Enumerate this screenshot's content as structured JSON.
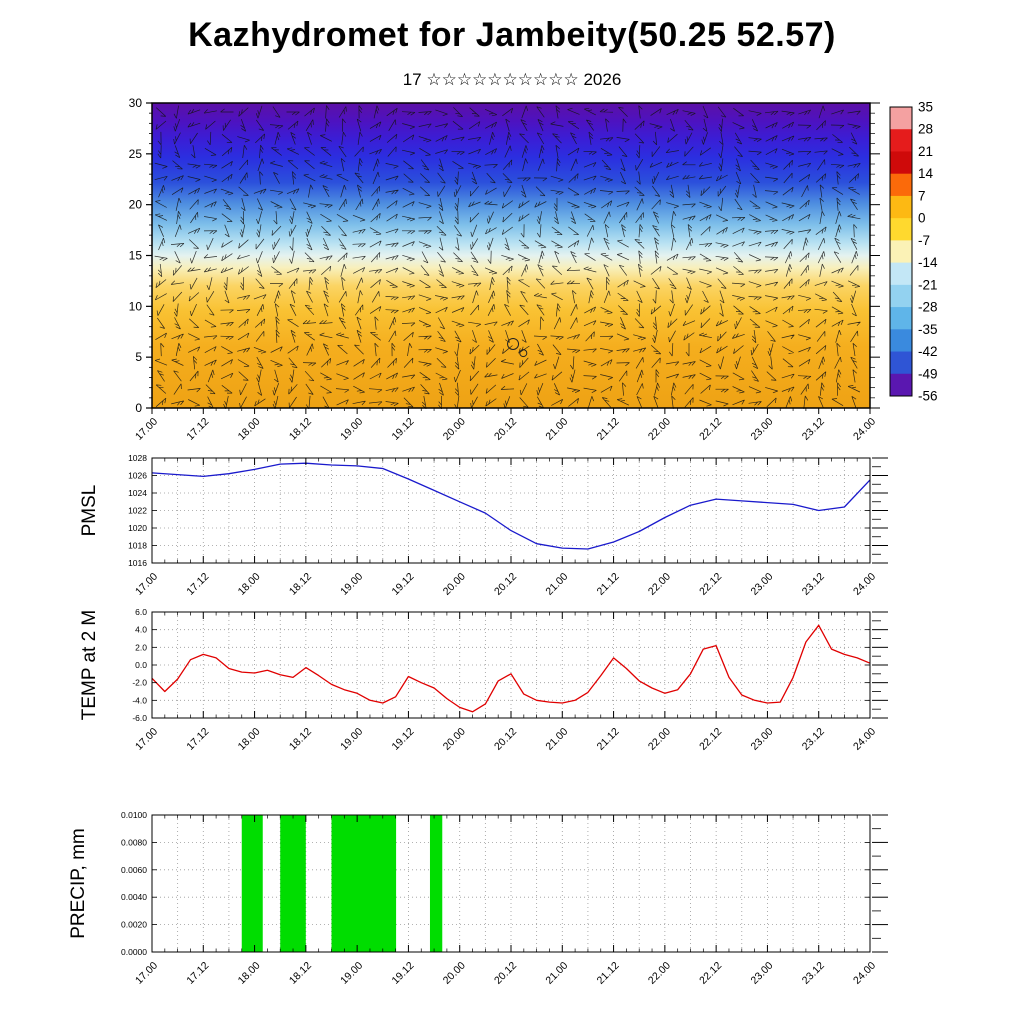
{
  "title": "Kazhydromet for Jambeity(50.25 52.57)",
  "subtitle": "17 ☆☆☆☆☆☆☆☆☆☆ 2026",
  "time_axis": {
    "tick_labels": [
      "17.00",
      "17.12",
      "18.00",
      "18.12",
      "19.00",
      "19.12",
      "20.00",
      "20.12",
      "21.00",
      "21.12",
      "22.00",
      "22.12",
      "23.00",
      "23.12",
      "24.00"
    ],
    "major_values": [
      17,
      17.5,
      18,
      18.5,
      19,
      19.5,
      20,
      20.5,
      21,
      21.5,
      22,
      22.5,
      23,
      23.5,
      24
    ],
    "minor_step_days": 0.125,
    "range_days": [
      17,
      24
    ]
  },
  "chart_data": [
    {
      "type": "heatmap",
      "panel_name": "temperature-height-cross-section",
      "description": "time-height temperature cross-section with wind barbs",
      "ylim": [
        0,
        30
      ],
      "ytick_values": [
        0,
        5,
        10,
        15,
        20,
        25,
        30
      ],
      "ytick_labels": [
        "0",
        "5",
        "10",
        "15",
        "20",
        "25",
        "30"
      ],
      "gradient_stops": [
        {
          "offset": 0,
          "color": "#5c10a6"
        },
        {
          "offset": 6,
          "color": "#4d12c0"
        },
        {
          "offset": 12,
          "color": "#3a1ed6"
        },
        {
          "offset": 18,
          "color": "#2b2fe0"
        },
        {
          "offset": 26,
          "color": "#2b50dc"
        },
        {
          "offset": 33,
          "color": "#4e8ee0"
        },
        {
          "offset": 40,
          "color": "#7fc0ea"
        },
        {
          "offset": 46,
          "color": "#b9e2f2"
        },
        {
          "offset": 50,
          "color": "#e4f2f0"
        },
        {
          "offset": 54,
          "color": "#f8f0bc"
        },
        {
          "offset": 60,
          "color": "#fbd463"
        },
        {
          "offset": 68,
          "color": "#f9c233"
        },
        {
          "offset": 80,
          "color": "#f5ae1e"
        },
        {
          "offset": 100,
          "color": "#eea214"
        }
      ],
      "markers": [
        {
          "t": 20.52,
          "h": 6.3,
          "r": 5.5
        },
        {
          "t": 20.62,
          "h": 5.4,
          "r": 3.5
        }
      ],
      "colorbar": {
        "labels": [
          "35",
          "28",
          "21",
          "14",
          "7",
          "0",
          "-7",
          "-14",
          "-21",
          "-28",
          "-35",
          "-42",
          "-49",
          "-56"
        ],
        "segment_colors": [
          "#f4a1a1",
          "#e51c1c",
          "#cf0a0a",
          "#fb6a0a",
          "#fdb913",
          "#ffd92e",
          "#fbf2b6",
          "#c3e7f6",
          "#93d2f0",
          "#5fb5e9",
          "#3a8ade",
          "#2f55d5",
          "#5a17b0"
        ]
      }
    },
    {
      "type": "line",
      "panel_name": "pmsl-panel",
      "line_name": "pmsl-line",
      "ylabel": "PMSL",
      "color": "#1a1acc",
      "ylim": [
        1016,
        1028
      ],
      "ytick_values": [
        1016,
        1018,
        1020,
        1022,
        1024,
        1026,
        1028
      ],
      "ytick_labels": [
        "1016",
        "1018",
        "1020",
        "1022",
        "1024",
        "1026",
        "1028"
      ],
      "x_start": 17,
      "x_step": 0.25,
      "values": [
        1026.3,
        1026.1,
        1025.9,
        1026.2,
        1026.7,
        1027.3,
        1027.4,
        1027.2,
        1027.1,
        1026.8,
        1025.6,
        1024.3,
        1023.0,
        1021.7,
        1019.7,
        1018.2,
        1017.7,
        1017.6,
        1018.4,
        1019.6,
        1021.2,
        1022.6,
        1023.3,
        1023.1,
        1022.9,
        1022.7,
        1022.0,
        1022.4,
        1025.5
      ]
    },
    {
      "type": "line",
      "panel_name": "temp-panel",
      "line_name": "temp-line",
      "ylabel": "TEMP at 2 M",
      "color": "#e00000",
      "ylim": [
        -6,
        6
      ],
      "ytick_values": [
        -6,
        -4,
        -2,
        0,
        2,
        4,
        6
      ],
      "ytick_labels": [
        "-6.0",
        "-4.0",
        "-2.0",
        "0.0",
        "2.0",
        "4.0",
        "6.0"
      ],
      "x_start": 17,
      "x_step": 0.125,
      "values": [
        -1.5,
        -3.0,
        -1.6,
        0.6,
        1.2,
        0.8,
        -0.4,
        -0.8,
        -0.9,
        -0.6,
        -1.1,
        -1.4,
        -0.3,
        -1.2,
        -2.2,
        -2.8,
        -3.2,
        -4.0,
        -4.3,
        -3.6,
        -1.3,
        -2.0,
        -2.6,
        -3.8,
        -4.8,
        -5.3,
        -4.4,
        -1.8,
        -1.0,
        -3.3,
        -4.0,
        -4.2,
        -4.3,
        -4.0,
        -3.1,
        -1.2,
        0.8,
        -0.4,
        -1.8,
        -2.6,
        -3.2,
        -2.8,
        -1.0,
        1.8,
        2.2,
        -1.4,
        -3.4,
        -4.0,
        -4.3,
        -4.2,
        -1.4,
        2.6,
        4.5,
        1.8,
        1.2,
        0.8,
        0.2
      ]
    },
    {
      "type": "bar",
      "panel_name": "precip-panel",
      "ylabel": "PRECIP, mm",
      "color": "#00dd00",
      "ylim": [
        0,
        0.01
      ],
      "ytick_values": [
        0,
        0.002,
        0.004,
        0.006,
        0.008,
        0.01
      ],
      "ytick_labels": [
        "0.0000",
        "0.0020",
        "0.0040",
        "0.0060",
        "0.0080",
        "0.0100"
      ],
      "bars": [
        {
          "start": 17.875,
          "end": 18.08,
          "value": 0.01
        },
        {
          "start": 18.25,
          "end": 18.5,
          "value": 0.01
        },
        {
          "start": 18.75,
          "end": 19.38,
          "value": 0.01
        },
        {
          "start": 19.71,
          "end": 19.83,
          "value": 0.01
        }
      ]
    }
  ]
}
